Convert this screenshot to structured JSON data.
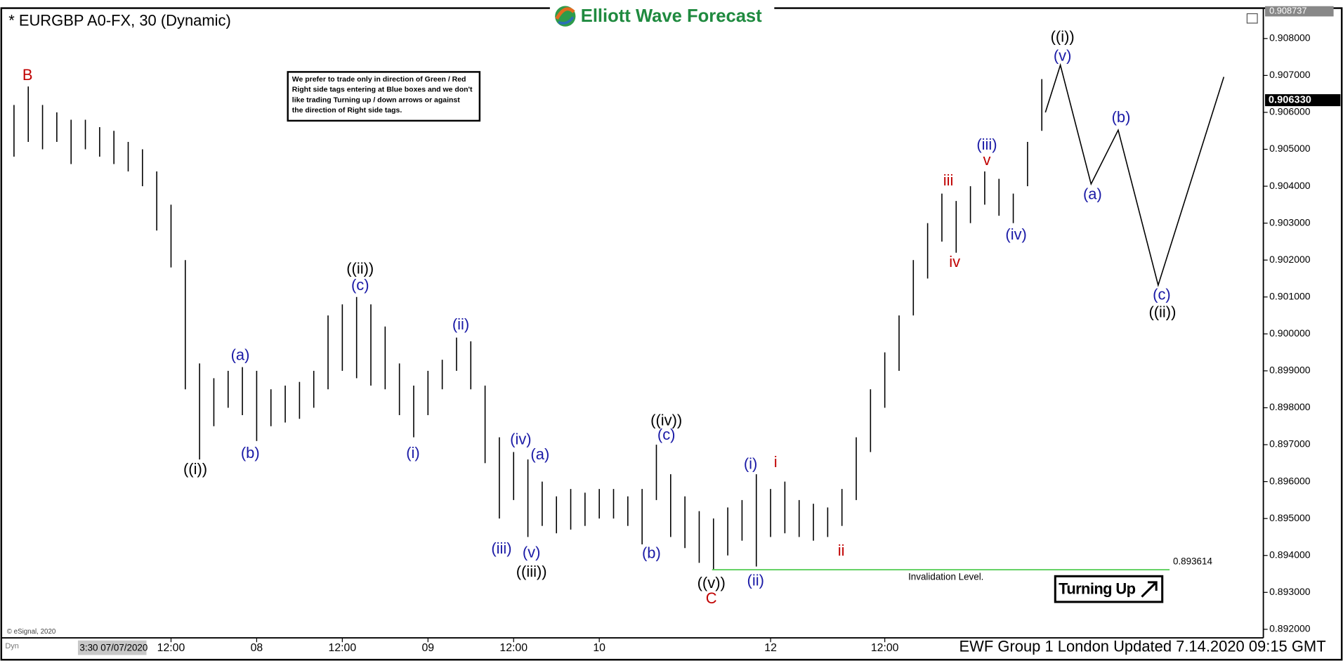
{
  "chart_data": {
    "type": "ohlc",
    "title": "* EURGBP A0-FX, 30 (Dynamic)",
    "brand": "Elliott Wave Forecast",
    "note_lines": [
      "We prefer to trade only in direction of Green / Red",
      "Right side tags entering at Blue boxes and we don't",
      "like trading Turning up / down arrows or against",
      "the direction of Right side tags."
    ],
    "badge": "Turning Up",
    "footer": "EWF Group 1 London Updated 7.14.2020 09:15 GMT",
    "copyright": "© eSignal, 2020",
    "corner_label": "Dyn",
    "start_label": "3:30 07/07/2020",
    "color": "#000000",
    "xlim": [
      0,
      176
    ],
    "xticks": [
      {
        "value": 23,
        "label": "12:00"
      },
      {
        "value": 35,
        "label": "08"
      },
      {
        "value": 47,
        "label": "12:00"
      },
      {
        "value": 59,
        "label": "09"
      },
      {
        "value": 71,
        "label": "12:00"
      },
      {
        "value": 83,
        "label": "10"
      },
      {
        "value": 107,
        "label": "12"
      },
      {
        "value": 123,
        "label": "12:00"
      }
    ],
    "ylim": [
      0.8918,
      0.908737
    ],
    "yticks": [
      {
        "value": 0.892,
        "label": "0.892000"
      },
      {
        "value": 0.893,
        "label": "0.893000"
      },
      {
        "value": 0.894,
        "label": "0.894000"
      },
      {
        "value": 0.895,
        "label": "0.895000"
      },
      {
        "value": 0.896,
        "label": "0.896000"
      },
      {
        "value": 0.897,
        "label": "0.897000"
      },
      {
        "value": 0.898,
        "label": "0.898000"
      },
      {
        "value": 0.899,
        "label": "0.899000"
      },
      {
        "value": 0.9,
        "label": "0.900000"
      },
      {
        "value": 0.901,
        "label": "0.901000"
      },
      {
        "value": 0.902,
        "label": "0.902000"
      },
      {
        "value": 0.903,
        "label": "0.903000"
      },
      {
        "value": 0.904,
        "label": "0.904000"
      },
      {
        "value": 0.905,
        "label": "0.905000"
      },
      {
        "value": 0.906,
        "label": "0.906000"
      },
      {
        "value": 0.907,
        "label": "0.907000"
      },
      {
        "value": 0.908,
        "label": "0.908000"
      }
    ],
    "axis_top": {
      "value": 0.908737,
      "label": "0.908737"
    },
    "last_price": {
      "value": 0.90633,
      "label": "0.906330"
    },
    "x": [
      1,
      3,
      5,
      7,
      9,
      11,
      13,
      15,
      17,
      19,
      21,
      23,
      25,
      27,
      29,
      31,
      33,
      35,
      37,
      39,
      41,
      43,
      45,
      47,
      49,
      51,
      53,
      55,
      57,
      59,
      61,
      63,
      65,
      67,
      69,
      71,
      73,
      75,
      77,
      79,
      81,
      83,
      85,
      87,
      89,
      91,
      93,
      95,
      97,
      99,
      101,
      103,
      105,
      107,
      109,
      111,
      113,
      115,
      117,
      119,
      121,
      123,
      125,
      127,
      129,
      131,
      133,
      135,
      137,
      139,
      141,
      143,
      145
    ],
    "high": [
      0.9062,
      0.9067,
      0.9062,
      0.906,
      0.9058,
      0.9058,
      0.9056,
      0.9055,
      0.9052,
      0.905,
      0.9044,
      0.9035,
      0.902,
      0.8992,
      0.8988,
      0.899,
      0.8991,
      0.899,
      0.8985,
      0.8986,
      0.8987,
      0.899,
      0.9005,
      0.9008,
      0.901,
      0.9008,
      0.9002,
      0.8992,
      0.8986,
      0.899,
      0.8993,
      0.8999,
      0.8998,
      0.8986,
      0.8972,
      0.8968,
      0.8966,
      0.896,
      0.8956,
      0.8958,
      0.8957,
      0.8958,
      0.8958,
      0.8956,
      0.8958,
      0.897,
      0.8962,
      0.8956,
      0.8952,
      0.895,
      0.8953,
      0.8955,
      0.8962,
      0.8958,
      0.896,
      0.8955,
      0.8954,
      0.8953,
      0.8958,
      0.8972,
      0.8985,
      0.8995,
      0.9005,
      0.902,
      0.903,
      0.9038,
      0.9036,
      0.904,
      0.9044,
      0.9042,
      0.9038,
      0.9052,
      0.9069
    ],
    "low": [
      0.9048,
      0.9052,
      0.905,
      0.9052,
      0.9046,
      0.905,
      0.9048,
      0.9046,
      0.9044,
      0.904,
      0.9028,
      0.9018,
      0.8985,
      0.8966,
      0.8975,
      0.898,
      0.8978,
      0.8971,
      0.8975,
      0.8976,
      0.8977,
      0.898,
      0.8985,
      0.899,
      0.8988,
      0.8986,
      0.8985,
      0.8978,
      0.8972,
      0.8978,
      0.8985,
      0.899,
      0.8985,
      0.8965,
      0.895,
      0.8955,
      0.8945,
      0.8948,
      0.8946,
      0.8947,
      0.8948,
      0.895,
      0.895,
      0.8948,
      0.8943,
      0.8955,
      0.8945,
      0.8942,
      0.8938,
      0.8936,
      0.894,
      0.8944,
      0.8937,
      0.8945,
      0.8946,
      0.8945,
      0.8944,
      0.8945,
      0.8948,
      0.8955,
      0.8968,
      0.898,
      0.899,
      0.9005,
      0.9015,
      0.9025,
      0.9022,
      0.903,
      0.9035,
      0.9032,
      0.903,
      0.904,
      0.9055
    ],
    "projection": {
      "x": [
        145.5,
        147.6,
        151.9,
        155.7,
        161.3,
        170.5
      ],
      "y": [
        0.906,
        0.90728,
        0.90406,
        0.90552,
        0.90132,
        0.90696
      ],
      "color": "#000000"
    },
    "invalidation": {
      "value": 0.893614,
      "label": "0.893614",
      "text": "Invalidation Level.",
      "x": [
        98.8,
        162.9
      ],
      "color": "#5ccf5c"
    },
    "annotations": [
      {
        "text": "B",
        "x": 2.9,
        "y": 0.90698,
        "color": "#c00000"
      },
      {
        "text": "((i))",
        "x": 26.4,
        "y": 0.89631,
        "color": "#000000"
      },
      {
        "text": "(a)",
        "x": 32.7,
        "y": 0.8994,
        "color": "#1a1aa6"
      },
      {
        "text": "(b)",
        "x": 34.1,
        "y": 0.89675,
        "color": "#1a1aa6"
      },
      {
        "text": "((ii))",
        "x": 49.5,
        "y": 0.90174,
        "color": "#000000"
      },
      {
        "text": "(c)",
        "x": 49.5,
        "y": 0.9013,
        "color": "#1a1aa6"
      },
      {
        "text": "(i)",
        "x": 56.9,
        "y": 0.89675,
        "color": "#1a1aa6"
      },
      {
        "text": "(ii)",
        "x": 63.6,
        "y": 0.90023,
        "color": "#1a1aa6"
      },
      {
        "text": "(iii)",
        "x": 69.3,
        "y": 0.89416,
        "color": "#1a1aa6"
      },
      {
        "text": "(iv)",
        "x": 72.0,
        "y": 0.89712,
        "color": "#1a1aa6"
      },
      {
        "text": "(a)",
        "x": 74.7,
        "y": 0.89671,
        "color": "#1a1aa6"
      },
      {
        "text": "(v)",
        "x": 73.5,
        "y": 0.89406,
        "color": "#1a1aa6"
      },
      {
        "text": "((iii))",
        "x": 73.5,
        "y": 0.89353,
        "color": "#000000"
      },
      {
        "text": "(b)",
        "x": 90.3,
        "y": 0.89404,
        "color": "#1a1aa6"
      },
      {
        "text": "((iv))",
        "x": 92.4,
        "y": 0.89763,
        "color": "#000000"
      },
      {
        "text": "(c)",
        "x": 92.4,
        "y": 0.89724,
        "color": "#1a1aa6"
      },
      {
        "text": "((v))",
        "x": 98.7,
        "y": 0.89323,
        "color": "#000000"
      },
      {
        "text": "C",
        "x": 98.7,
        "y": 0.89281,
        "color": "#c00000"
      },
      {
        "text": "(i)",
        "x": 104.2,
        "y": 0.89645,
        "color": "#1a1aa6"
      },
      {
        "text": "(ii)",
        "x": 104.9,
        "y": 0.8933,
        "color": "#1a1aa6"
      },
      {
        "text": "i",
        "x": 107.7,
        "y": 0.8965,
        "color": "#c00000"
      },
      {
        "text": "ii",
        "x": 116.9,
        "y": 0.89411,
        "color": "#c00000"
      },
      {
        "text": "iii",
        "x": 131.9,
        "y": 0.90413,
        "color": "#c00000"
      },
      {
        "text": "iv",
        "x": 132.8,
        "y": 0.90192,
        "color": "#c00000"
      },
      {
        "text": "v",
        "x": 137.3,
        "y": 0.90468,
        "color": "#c00000"
      },
      {
        "text": "(iii)",
        "x": 137.3,
        "y": 0.9051,
        "color": "#1a1aa6"
      },
      {
        "text": "(iv)",
        "x": 141.4,
        "y": 0.90267,
        "color": "#1a1aa6"
      },
      {
        "text": "((i))",
        "x": 147.9,
        "y": 0.90802,
        "color": "#000000"
      },
      {
        "text": "(v)",
        "x": 147.9,
        "y": 0.90751,
        "color": "#1a1aa6"
      },
      {
        "text": "(a)",
        "x": 152.1,
        "y": 0.90376,
        "color": "#1a1aa6"
      },
      {
        "text": "(b)",
        "x": 156.1,
        "y": 0.90584,
        "color": "#1a1aa6"
      },
      {
        "text": "(c)",
        "x": 161.8,
        "y": 0.90104,
        "color": "#1a1aa6"
      },
      {
        "text": "((ii))",
        "x": 161.9,
        "y": 0.90056,
        "color": "#000000"
      }
    ]
  }
}
